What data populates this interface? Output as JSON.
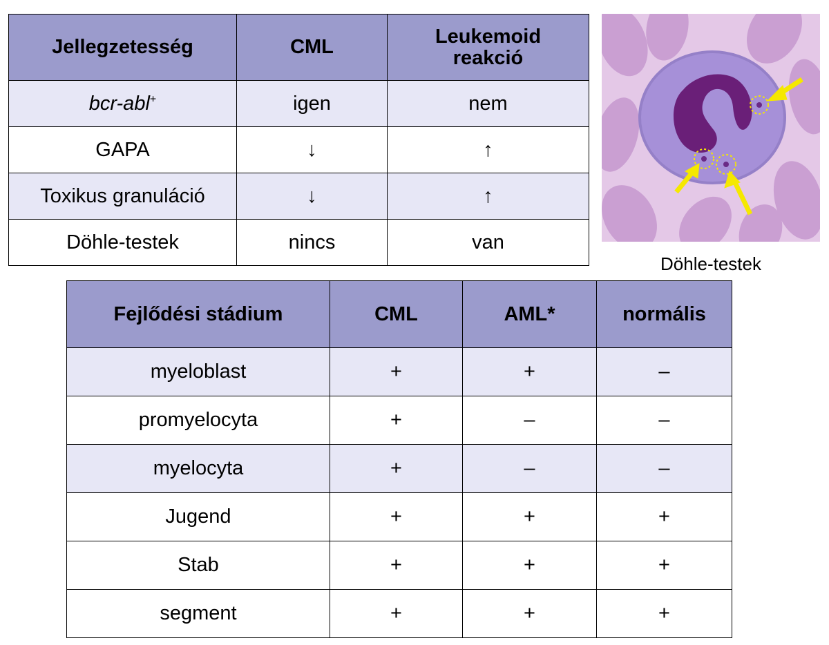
{
  "table1": {
    "headers": [
      "Jellegzetesség",
      "CML",
      "Leukemoid reakció"
    ],
    "header_lines": [
      "Leukemoid",
      "reakció"
    ],
    "rows": [
      {
        "label_italic": "bcr-abl",
        "label_sup": "+",
        "cml": "igen",
        "leuk": "nem"
      },
      {
        "label": "GAPA",
        "cml": "↓",
        "leuk": "↑"
      },
      {
        "label": "Toxikus granuláció",
        "cml": "↓",
        "leuk": "↑"
      },
      {
        "label": "Döhle-testek",
        "cml": "nincs",
        "leuk": "van"
      }
    ]
  },
  "image": {
    "caption": "Döhle-testek",
    "colors": {
      "background": "#e4c8e7",
      "rbc": "#c89bd0",
      "cell": "#a690d8",
      "nucleus": "#6a1f78",
      "arrow": "#f5e800"
    }
  },
  "table2": {
    "headers": [
      "Fejlődési stádium",
      "CML",
      "AML*",
      "normális"
    ],
    "rows": [
      [
        "myeloblast",
        "+",
        "+",
        "–"
      ],
      [
        "promyelocyta",
        "+",
        "–",
        "–"
      ],
      [
        "myelocyta",
        "+",
        "–",
        "–"
      ],
      [
        "Jugend",
        "+",
        "+",
        "+"
      ],
      [
        "Stab",
        "+",
        "+",
        "+"
      ],
      [
        "segment",
        "+",
        "+",
        "+"
      ]
    ]
  },
  "colors": {
    "header_bg": "#9b9bcc",
    "row_shade": "#e7e7f6"
  }
}
